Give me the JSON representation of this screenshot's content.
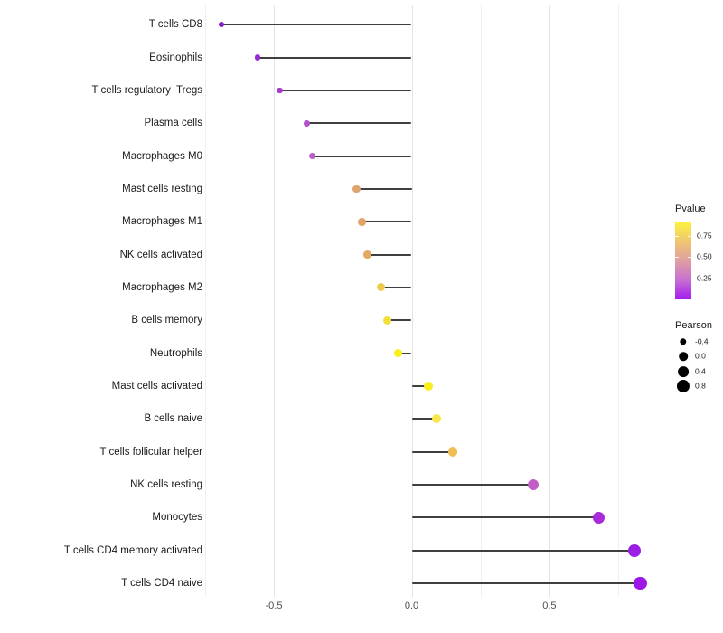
{
  "chart_data": {
    "type": "lollipop",
    "title": "",
    "xlabel": "",
    "ylabel": "",
    "background": "#ffffff",
    "stem_color": "#3f3f3f",
    "grid": "on",
    "points": [
      {
        "label": "T cells CD8",
        "pearson": -0.69,
        "color": "#8620cc"
      },
      {
        "label": "Eosinophils",
        "pearson": -0.56,
        "color": "#982bd4"
      },
      {
        "label": "T cells regulatory  Tregs",
        "pearson": -0.48,
        "color": "#a53bcd"
      },
      {
        "label": "Plasma cells",
        "pearson": -0.38,
        "color": "#b551c8"
      },
      {
        "label": "Macrophages M0",
        "pearson": -0.36,
        "color": "#bc5fc5"
      },
      {
        "label": "Mast cells resting",
        "pearson": -0.2,
        "color": "#e0a46f"
      },
      {
        "label": "Macrophages M1",
        "pearson": -0.18,
        "color": "#e1a56b"
      },
      {
        "label": "NK cells activated",
        "pearson": -0.16,
        "color": "#e4a962"
      },
      {
        "label": "Macrophages M2",
        "pearson": -0.11,
        "color": "#efcb4d"
      },
      {
        "label": "B cells memory",
        "pearson": -0.09,
        "color": "#f3df3a"
      },
      {
        "label": "Neutrophils",
        "pearson": -0.05,
        "color": "#f8f018"
      },
      {
        "label": "Mast cells activated",
        "pearson": 0.06,
        "color": "#f7ee1a"
      },
      {
        "label": "B cells naive",
        "pearson": 0.09,
        "color": "#f6e74a"
      },
      {
        "label": "T cells follicular helper",
        "pearson": 0.15,
        "color": "#efbe55"
      },
      {
        "label": "NK cells resting",
        "pearson": 0.44,
        "color": "#c45ec7"
      },
      {
        "label": "Monocytes",
        "pearson": 0.68,
        "color": "#a72bdb"
      },
      {
        "label": "T cells CD4 memory activated",
        "pearson": 0.81,
        "color": "#9c1de4"
      },
      {
        "label": "T cells CD4 naive",
        "pearson": 0.83,
        "color": "#9d18e6"
      }
    ],
    "x_axis": {
      "range": [
        -0.769,
        0.907
      ],
      "major_ticks": [
        -0.5,
        0.0,
        0.5
      ],
      "tick_labels": [
        "-0.5",
        "0.0",
        "0.5"
      ],
      "minor_ticks": [
        -0.75,
        -0.25,
        0.25,
        0.75
      ]
    },
    "legends": {
      "pvalue": {
        "title": "Pvalue",
        "bar_min": 0,
        "bar_max": 0.91,
        "tick_values": [
          0.75,
          0.5,
          0.25
        ],
        "tick_labels": [
          "0.75",
          "0.50",
          "0.25"
        ],
        "gradient_top_to_bottom": [
          "#fcf23c",
          "#efc573",
          "#de9fa3",
          "#c76fd1",
          "#a51bf0"
        ]
      },
      "pearson": {
        "title": "Pearson",
        "entries": [
          {
            "label": "-0.4",
            "value": -0.4
          },
          {
            "label": "0.0",
            "value": 0.0
          },
          {
            "label": "0.4",
            "value": 0.4
          },
          {
            "label": "0.8",
            "value": 0.8
          }
        ],
        "dot_color": "#000000"
      }
    }
  }
}
